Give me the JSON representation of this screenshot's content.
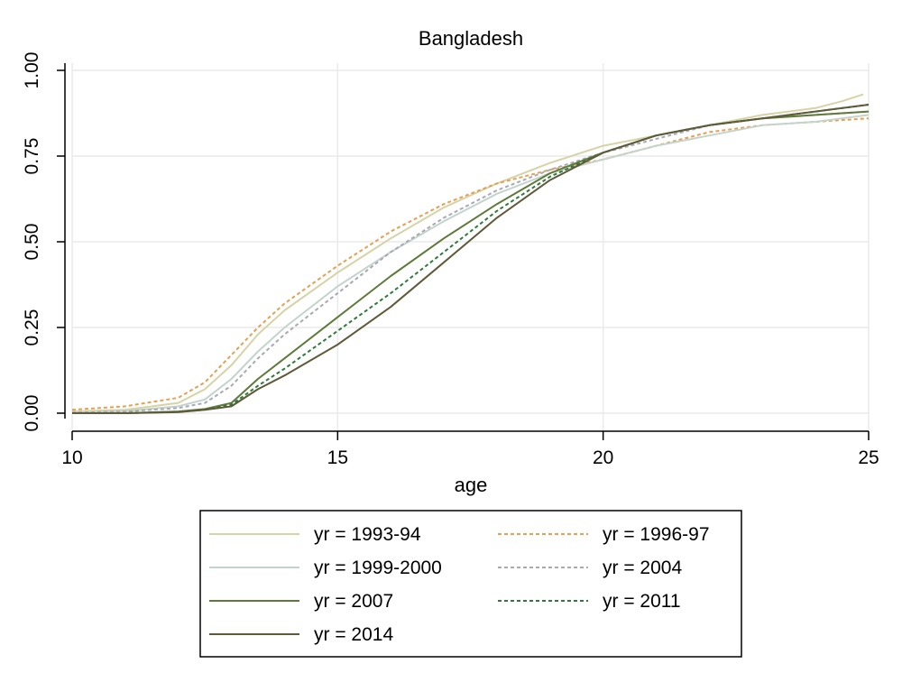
{
  "chart_data": {
    "type": "line",
    "title": "Bangladesh",
    "xlabel": "age",
    "ylabel": "",
    "xlim": [
      10,
      25
    ],
    "ylim": [
      0,
      1
    ],
    "x_ticks": [
      "10",
      "15",
      "20",
      "25"
    ],
    "y_ticks": [
      "0.00",
      "0.25",
      "0.50",
      "0.75",
      "1.00"
    ],
    "grid": true,
    "legend_placement": "bottom",
    "series": [
      {
        "name": "yr = 1993-94",
        "color": "#d6d3a6",
        "dash": "solid",
        "points": [
          [
            10,
            0.005
          ],
          [
            11,
            0.01
          ],
          [
            12,
            0.03
          ],
          [
            12.5,
            0.07
          ],
          [
            13,
            0.14
          ],
          [
            13.5,
            0.23
          ],
          [
            14,
            0.3
          ],
          [
            15,
            0.41
          ],
          [
            16,
            0.51
          ],
          [
            17,
            0.6
          ],
          [
            18,
            0.67
          ],
          [
            19,
            0.73
          ],
          [
            20,
            0.78
          ],
          [
            21,
            0.81
          ],
          [
            22,
            0.84
          ],
          [
            23,
            0.87
          ],
          [
            24,
            0.89
          ],
          [
            24.5,
            0.91
          ],
          [
            24.9,
            0.93
          ]
        ]
      },
      {
        "name": "yr = 1996-97",
        "color": "#e5a052",
        "dash": "dotted",
        "points": [
          [
            10,
            0.01
          ],
          [
            11,
            0.02
          ],
          [
            12,
            0.045
          ],
          [
            12.5,
            0.09
          ],
          [
            13,
            0.17
          ],
          [
            13.5,
            0.25
          ],
          [
            14,
            0.32
          ],
          [
            15,
            0.43
          ],
          [
            16,
            0.53
          ],
          [
            17,
            0.61
          ],
          [
            18,
            0.67
          ],
          [
            19,
            0.71
          ],
          [
            20,
            0.74
          ],
          [
            21,
            0.78
          ],
          [
            22,
            0.82
          ],
          [
            23,
            0.84
          ],
          [
            24,
            0.85
          ],
          [
            25,
            0.86
          ]
        ]
      },
      {
        "name": "yr = 1999-2000",
        "color": "#c3d4cc",
        "dash": "solid",
        "points": [
          [
            10,
            0.002
          ],
          [
            11,
            0.006
          ],
          [
            12,
            0.02
          ],
          [
            12.5,
            0.04
          ],
          [
            13,
            0.1
          ],
          [
            13.5,
            0.18
          ],
          [
            14,
            0.25
          ],
          [
            15,
            0.37
          ],
          [
            16,
            0.47
          ],
          [
            17,
            0.56
          ],
          [
            18,
            0.64
          ],
          [
            19,
            0.7
          ],
          [
            20,
            0.74
          ],
          [
            21,
            0.78
          ],
          [
            22,
            0.81
          ],
          [
            23,
            0.84
          ],
          [
            24,
            0.85
          ],
          [
            25,
            0.87
          ]
        ]
      },
      {
        "name": "yr = 2004",
        "color": "#a9a9b6",
        "dash": "dotted",
        "points": [
          [
            10,
            0.002
          ],
          [
            11,
            0.005
          ],
          [
            12,
            0.015
          ],
          [
            12.5,
            0.03
          ],
          [
            13,
            0.08
          ],
          [
            13.5,
            0.16
          ],
          [
            14,
            0.23
          ],
          [
            15,
            0.35
          ],
          [
            16,
            0.47
          ],
          [
            17,
            0.57
          ],
          [
            18,
            0.65
          ],
          [
            19,
            0.71
          ],
          [
            20,
            0.76
          ],
          [
            21,
            0.8
          ],
          [
            22,
            0.84
          ],
          [
            23,
            0.86
          ],
          [
            24,
            0.87
          ],
          [
            25,
            0.88
          ]
        ]
      },
      {
        "name": "yr = 2007",
        "color": "#5e7a3a",
        "dash": "solid",
        "points": [
          [
            10,
            0
          ],
          [
            11,
            0
          ],
          [
            12,
            0.005
          ],
          [
            12.5,
            0.012
          ],
          [
            13,
            0.03
          ],
          [
            13.5,
            0.1
          ],
          [
            14,
            0.16
          ],
          [
            15,
            0.28
          ],
          [
            16,
            0.4
          ],
          [
            17,
            0.51
          ],
          [
            18,
            0.61
          ],
          [
            19,
            0.7
          ],
          [
            20,
            0.76
          ],
          [
            21,
            0.81
          ],
          [
            22,
            0.84
          ],
          [
            23,
            0.86
          ],
          [
            24,
            0.87
          ],
          [
            25,
            0.88
          ]
        ]
      },
      {
        "name": "yr = 2011",
        "color": "#2f7a3a",
        "dash": "dotted",
        "points": [
          [
            10,
            0
          ],
          [
            11,
            0
          ],
          [
            12,
            0.004
          ],
          [
            12.5,
            0.01
          ],
          [
            13,
            0.025
          ],
          [
            13.5,
            0.08
          ],
          [
            14,
            0.13
          ],
          [
            15,
            0.24
          ],
          [
            16,
            0.35
          ],
          [
            17,
            0.47
          ],
          [
            18,
            0.59
          ],
          [
            19,
            0.69
          ],
          [
            20,
            0.76
          ],
          [
            21,
            0.81
          ],
          [
            22,
            0.84
          ],
          [
            23,
            0.86
          ],
          [
            24,
            0.88
          ],
          [
            25,
            0.9
          ]
        ]
      },
      {
        "name": "yr = 2014",
        "color": "#5f5a3a",
        "dash": "solid",
        "points": [
          [
            10,
            0
          ],
          [
            11,
            0
          ],
          [
            12,
            0.003
          ],
          [
            12.5,
            0.01
          ],
          [
            13,
            0.02
          ],
          [
            13.5,
            0.07
          ],
          [
            14,
            0.11
          ],
          [
            15,
            0.2
          ],
          [
            16,
            0.31
          ],
          [
            17,
            0.44
          ],
          [
            18,
            0.57
          ],
          [
            19,
            0.68
          ],
          [
            20,
            0.76
          ],
          [
            21,
            0.81
          ],
          [
            22,
            0.84
          ],
          [
            23,
            0.86
          ],
          [
            24,
            0.88
          ],
          [
            25,
            0.9
          ]
        ]
      }
    ]
  }
}
